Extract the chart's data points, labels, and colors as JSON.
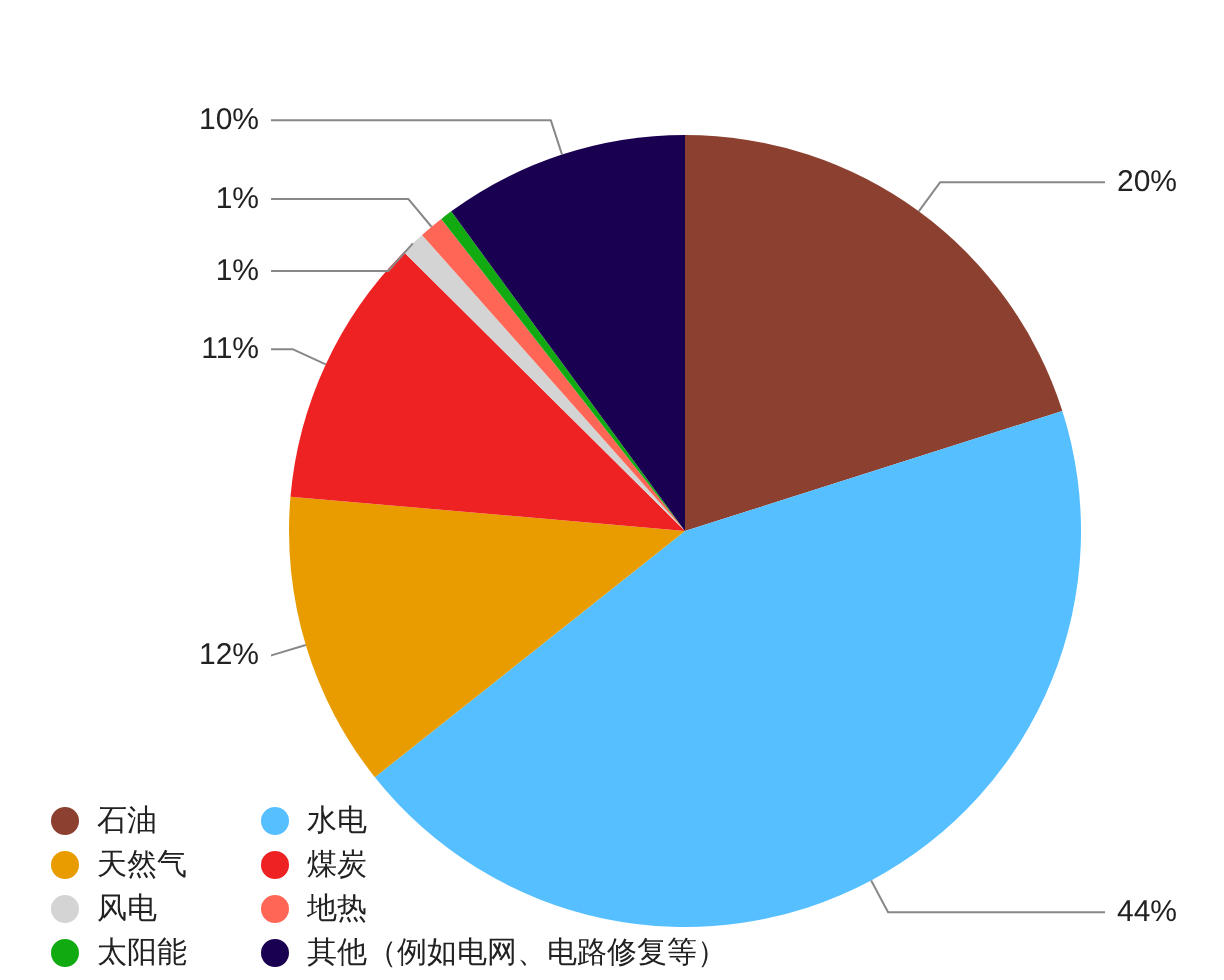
{
  "chart_data": {
    "type": "pie",
    "categories": [
      "石油",
      "水电",
      "天然气",
      "煤炭",
      "风电",
      "地热",
      "太阳能",
      "其他（例如电网、电路修复等）"
    ],
    "values": [
      20,
      44,
      12,
      11,
      1,
      1,
      0.5,
      10
    ],
    "value_labels": [
      "20%",
      "44%",
      "12%",
      "11%",
      "1%",
      "1%",
      null,
      "10%"
    ],
    "colors": [
      "#8b4030",
      "#55bfff",
      "#e89c00",
      "#ee2222",
      "#d4d4d4",
      "#ff6655",
      "#11aa11",
      "#1a0050"
    ],
    "legend": "bottom left"
  }
}
